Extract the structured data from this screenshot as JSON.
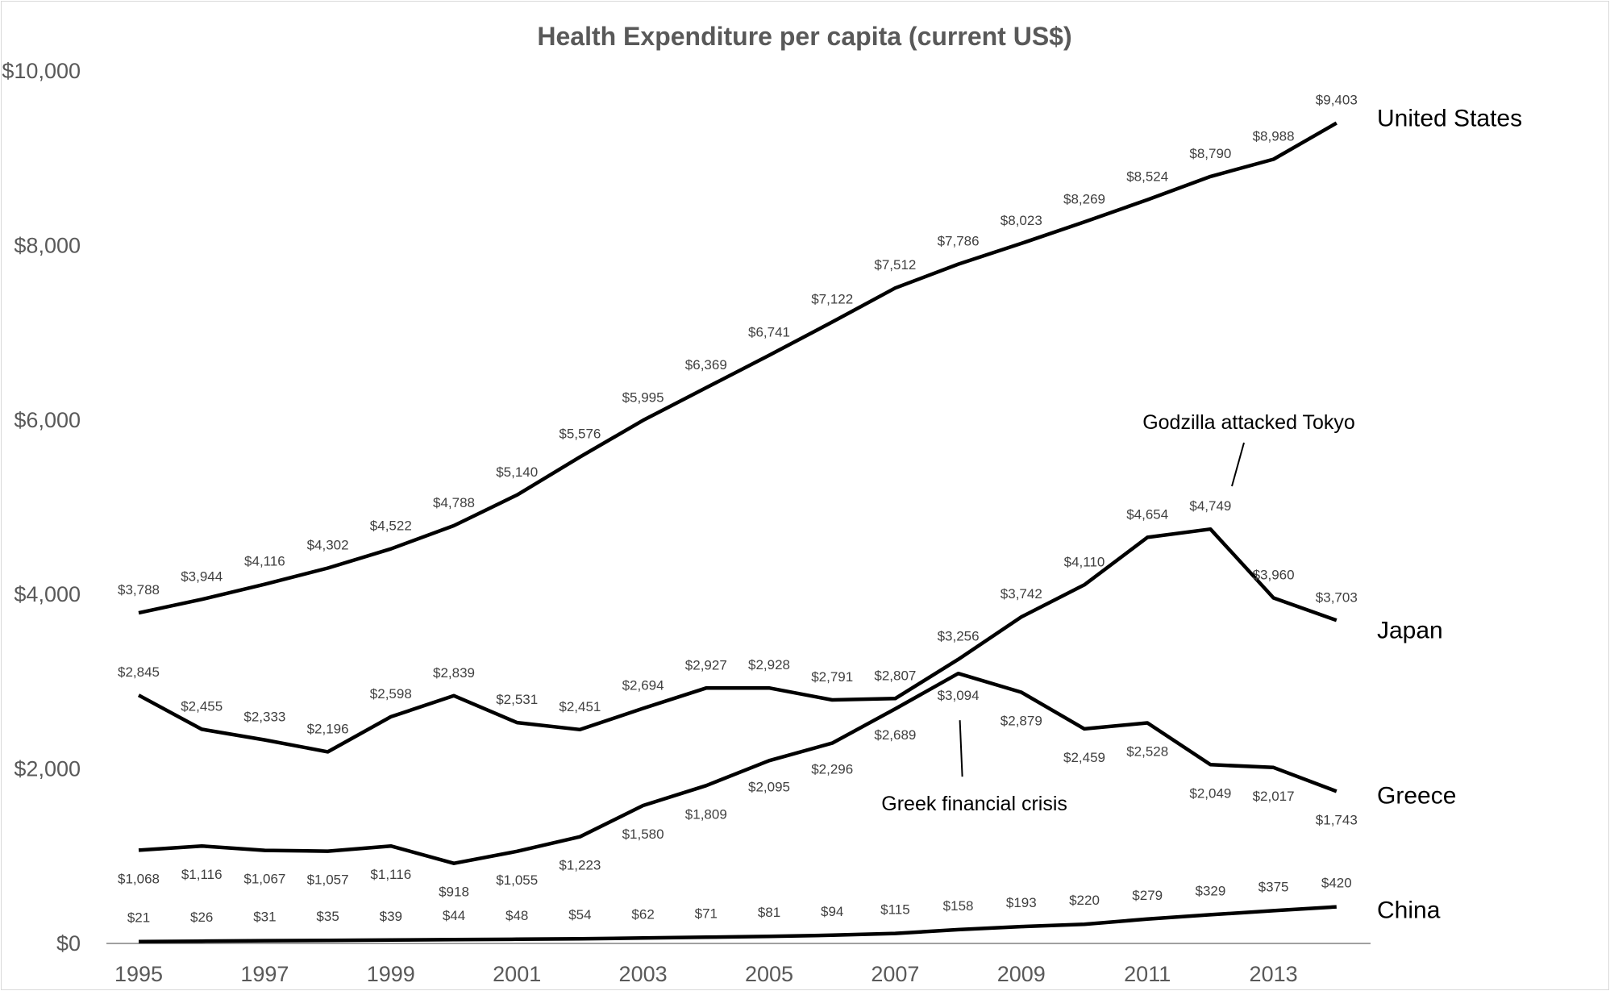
{
  "chart_data": {
    "type": "line",
    "title": "Health Expenditure per capita (current US$)",
    "xlabel": "",
    "ylabel": "",
    "x": [
      1995,
      1996,
      1997,
      1998,
      1999,
      2000,
      2001,
      2002,
      2003,
      2004,
      2005,
      2006,
      2007,
      2008,
      2009,
      2010,
      2011,
      2012,
      2013,
      2014
    ],
    "x_tick_labels": [
      "1995",
      "1997",
      "1999",
      "2001",
      "2003",
      "2005",
      "2007",
      "2009",
      "2011",
      "2013"
    ],
    "y_tick_labels": [
      "$0",
      "$2,000",
      "$4,000",
      "$6,000",
      "$8,000",
      "$10,000"
    ],
    "ylim": [
      0,
      10000
    ],
    "grid": false,
    "series": [
      {
        "name": "United States",
        "values": [
          3788,
          3944,
          4116,
          4302,
          4522,
          4788,
          5140,
          5576,
          5995,
          6369,
          6741,
          7122,
          7512,
          7786,
          8023,
          8269,
          8524,
          8790,
          8988,
          9403
        ],
        "labels": [
          "$3,788",
          "$3,944",
          "$4,116",
          "$4,302",
          "$4,522",
          "$4,788",
          "$5,140",
          "$5,576",
          "$5,995",
          "$6,369",
          "$6,741",
          "$7,122",
          "$7,512",
          "$7,786",
          "$8,023",
          "$8,269",
          "$8,524",
          "$8,790",
          "$8,988",
          "$9,403"
        ]
      },
      {
        "name": "Japan",
        "values": [
          2845,
          2455,
          2333,
          2196,
          2598,
          2839,
          2531,
          2451,
          2694,
          2927,
          2928,
          2791,
          2807,
          3256,
          3742,
          4110,
          4654,
          4749,
          3960,
          3703
        ],
        "labels": [
          "$2,845",
          "$2,455",
          "$2,333",
          "$2,196",
          "$2,598",
          "$2,839",
          "$2,531",
          "$2,451",
          "$2,694",
          "$2,927",
          "$2,928",
          "$2,791",
          "$2,807",
          "$3,256",
          "$3,742",
          "$4,110",
          "$4,654",
          "$4,749",
          "$3,960",
          "$3,703"
        ]
      },
      {
        "name": "Greece",
        "values": [
          1068,
          1116,
          1067,
          1057,
          1116,
          918,
          1055,
          1223,
          1580,
          1809,
          2095,
          2296,
          2689,
          3094,
          2879,
          2459,
          2528,
          2049,
          2017,
          1743
        ],
        "labels": [
          "$1,068",
          "$1,116",
          "$1,067",
          "$1,057",
          "$1,116",
          "$918",
          "$1,055",
          "$1,223",
          "$1,580",
          "$1,809",
          "$2,095",
          "$2,296",
          "$2,689",
          "$3,094",
          "$2,879",
          "$2,459",
          "$2,528",
          "$2,049",
          "$2,017",
          "$1,743"
        ]
      },
      {
        "name": "China",
        "values": [
          21,
          26,
          31,
          35,
          39,
          44,
          48,
          54,
          62,
          71,
          81,
          94,
          115,
          158,
          193,
          220,
          279,
          329,
          375,
          420
        ],
        "labels": [
          "$21",
          "$26",
          "$31",
          "$35",
          "$39",
          "$44",
          "$48",
          "$54",
          "$62",
          "$71",
          "$81",
          "$94",
          "$115",
          "$158",
          "$193",
          "$220",
          "$279",
          "$329",
          "$375",
          "$420"
        ]
      }
    ],
    "annotations": [
      {
        "text": "Godzilla attacked Tokyo",
        "series": "Japan",
        "x": 2012
      },
      {
        "text": "Greek financial crisis",
        "series": "Greece",
        "x": 2008
      }
    ],
    "colors": {
      "line": "#000000",
      "axis": "#808080",
      "text": "#595959"
    }
  }
}
